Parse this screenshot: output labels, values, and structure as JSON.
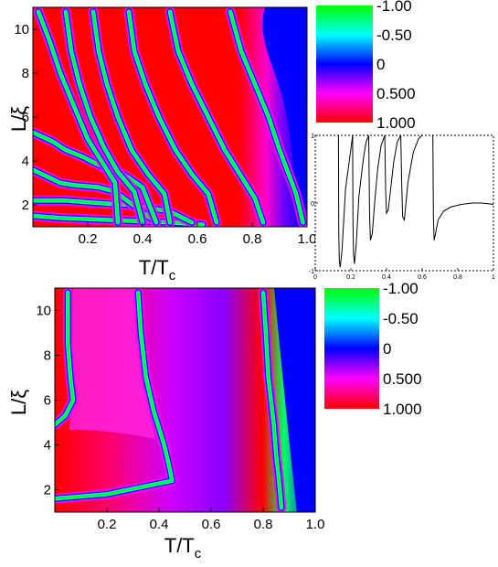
{
  "chart_data": [
    {
      "type": "heatmap",
      "panel": "top",
      "xlabel": "T/T",
      "xlabel_sub": "c",
      "ylabel": "L/ξ",
      "xlim": [
        0.0,
        1.0
      ],
      "ylim": [
        1.0,
        11.0
      ],
      "xticks": [
        "0.2",
        "0.4",
        "0.6",
        "0.8",
        "1.0"
      ],
      "yticks": [
        "2",
        "4",
        "6",
        "8",
        "10"
      ],
      "colorbar": {
        "range": [
          -1.0,
          1.0
        ],
        "ticks": [
          "-1.00",
          "-0.50",
          "0",
          "0.500",
          "1.000"
        ],
        "colors": [
          "#00ff00",
          "#00ffff",
          "#0000ff",
          "#ff00ff",
          "#ff0000"
        ]
      },
      "stripe_ridges": [
        {
          "L": [
            1.5,
            1.4,
            1.3,
            1.2,
            1.1
          ],
          "T": [
            0.0,
            0.1,
            0.3,
            0.5,
            0.62
          ]
        },
        {
          "L": [
            2.2,
            2.2,
            2.1,
            2.0,
            1.7,
            1.2
          ],
          "T": [
            0.0,
            0.12,
            0.22,
            0.35,
            0.5,
            0.58
          ]
        },
        {
          "L": [
            3.6,
            3.3,
            3.0,
            2.9,
            2.8,
            2.6,
            1.2
          ],
          "T": [
            0.0,
            0.05,
            0.1,
            0.15,
            0.24,
            0.3,
            0.45
          ]
        },
        {
          "L": [
            5.3,
            4.9,
            4.5,
            4.2,
            3.7,
            3.4,
            2.8,
            1.2
          ],
          "T": [
            0.0,
            0.07,
            0.12,
            0.18,
            0.26,
            0.33,
            0.4,
            0.45
          ]
        },
        {
          "L": [
            10.8,
            9.5,
            8.0,
            6.5,
            5.0,
            3.8,
            3.0,
            1.2
          ],
          "T": [
            0.02,
            0.06,
            0.1,
            0.15,
            0.2,
            0.26,
            0.3,
            0.31
          ]
        },
        {
          "L": [
            10.8,
            9.0,
            7.5,
            6.0,
            4.6,
            3.5,
            2.6,
            1.2
          ],
          "T": [
            0.12,
            0.14,
            0.17,
            0.21,
            0.26,
            0.31,
            0.37,
            0.4
          ]
        },
        {
          "L": [
            10.8,
            9.0,
            7.5,
            6.0,
            4.5,
            3.4,
            2.5,
            1.2
          ],
          "T": [
            0.22,
            0.24,
            0.27,
            0.31,
            0.36,
            0.42,
            0.48,
            0.5
          ]
        },
        {
          "L": [
            10.8,
            9.0,
            7.5,
            6.0,
            4.5,
            3.4,
            2.5,
            1.2
          ],
          "T": [
            0.35,
            0.37,
            0.41,
            0.46,
            0.52,
            0.58,
            0.64,
            0.67
          ]
        },
        {
          "L": [
            10.8,
            9.0,
            7.5,
            6.0,
            4.5,
            3.3,
            2.3,
            1.2
          ],
          "T": [
            0.5,
            0.53,
            0.58,
            0.64,
            0.7,
            0.76,
            0.81,
            0.84
          ]
        },
        {
          "L": [
            10.8,
            9.0,
            7.5,
            6.0,
            4.5,
            3.5,
            2.5,
            1.2
          ],
          "T": [
            0.72,
            0.76,
            0.81,
            0.86,
            0.9,
            0.93,
            0.96,
            0.985
          ]
        }
      ]
    },
    {
      "type": "line",
      "panel": "inset",
      "xlim": [
        0,
        1
      ],
      "ylim": [
        -1,
        1
      ],
      "xticks": [
        "0",
        "0.2",
        "0.4",
        "0.6",
        "0.8",
        "1"
      ],
      "yticks": [
        "-1",
        "0",
        "1"
      ],
      "series": [
        {
          "x": [
            0.13,
            0.132,
            0.135,
            0.14,
            0.15,
            0.17,
            0.2,
            0.21
          ],
          "y": [
            1.0,
            -0.4,
            -0.85,
            -0.95,
            -0.7,
            0.2,
            0.8,
            1.0
          ]
        },
        {
          "x": [
            0.21,
            0.212,
            0.215,
            0.22,
            0.23,
            0.245,
            0.27,
            0.285,
            0.3
          ],
          "y": [
            1.0,
            -0.3,
            -0.75,
            -0.9,
            -0.6,
            0.1,
            0.65,
            0.9,
            1.0
          ]
        },
        {
          "x": [
            0.3,
            0.305,
            0.31,
            0.32,
            0.335,
            0.35,
            0.37,
            0.39
          ],
          "y": [
            1.0,
            -0.2,
            -0.55,
            -0.45,
            0.05,
            0.5,
            0.85,
            1.0
          ]
        },
        {
          "x": [
            0.39,
            0.395,
            0.4,
            0.41,
            0.425,
            0.44,
            0.46,
            0.48
          ],
          "y": [
            1.0,
            0.2,
            -0.15,
            -0.1,
            0.25,
            0.6,
            0.9,
            1.0
          ]
        },
        {
          "x": [
            0.48,
            0.485,
            0.49,
            0.5,
            0.52,
            0.55,
            0.58,
            0.6
          ],
          "y": [
            1.0,
            0.3,
            -0.2,
            -0.25,
            0.3,
            0.75,
            0.95,
            1.0
          ]
        },
        {
          "x": [
            0.66,
            0.663,
            0.667,
            0.675,
            0.69,
            0.72,
            0.76,
            0.82,
            0.88,
            0.93,
            0.97,
            1.0
          ],
          "y": [
            1.0,
            -0.2,
            -0.55,
            -0.45,
            -0.25,
            -0.12,
            -0.06,
            -0.02,
            0.0,
            0.0,
            -0.01,
            -0.02
          ]
        }
      ]
    },
    {
      "type": "heatmap",
      "panel": "bottom",
      "xlabel": "T/T",
      "xlabel_sub": "c",
      "ylabel": "L/ξ",
      "xlim": [
        0.0,
        1.0
      ],
      "ylim": [
        1.0,
        11.0
      ],
      "xticks": [
        "0.2",
        "0.4",
        "0.6",
        "0.8",
        "1.0"
      ],
      "yticks": [
        "2",
        "4",
        "6",
        "8",
        "10"
      ],
      "colorbar": {
        "range": [
          -1.0,
          1.0
        ],
        "ticks": [
          "-1.00",
          "-0.50",
          "0",
          "0.500",
          "1.000"
        ],
        "colors": [
          "#00ff00",
          "#00ffff",
          "#0000ff",
          "#ff00ff",
          "#ff0000"
        ]
      },
      "stripe_ridges": [
        {
          "L": [
            10.8,
            8.5,
            7.0,
            6.0,
            5.3,
            4.9
          ],
          "T": [
            0.05,
            0.05,
            0.06,
            0.07,
            0.04,
            0.0
          ]
        },
        {
          "L": [
            10.8,
            9.0,
            7.0,
            5.5,
            4.0,
            3.0,
            2.4,
            1.8,
            1.6
          ],
          "T": [
            0.32,
            0.33,
            0.35,
            0.38,
            0.42,
            0.44,
            0.45,
            0.2,
            0.0
          ]
        },
        {
          "L": [
            10.8,
            9.0,
            7.0,
            5.0,
            3.5,
            2.5,
            1.2
          ],
          "T": [
            0.8,
            0.81,
            0.82,
            0.84,
            0.85,
            0.86,
            0.87
          ]
        }
      ]
    }
  ]
}
